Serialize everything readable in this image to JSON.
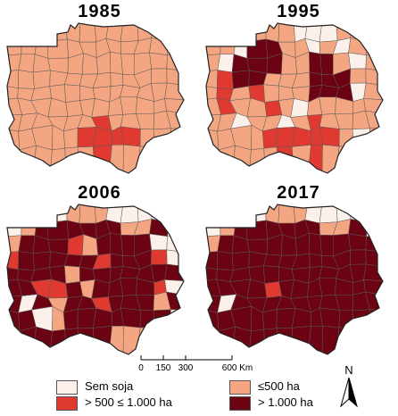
{
  "panels": [
    {
      "year": "1985"
    },
    {
      "year": "1995"
    },
    {
      "year": "2006"
    },
    {
      "year": "2017"
    }
  ],
  "scale": {
    "ticks": [
      "0",
      "150",
      "300",
      "600 Km"
    ]
  },
  "north_arrow": {
    "label": "N",
    "icon": "north-arrow-icon"
  },
  "legend": {
    "items": [
      {
        "label": "Sem soja",
        "color": "#fcf0ea"
      },
      {
        "label": "≤500 ha",
        "color": "#f4a582"
      },
      {
        "label": "> 500 ≤ 1.000 ha",
        "color": "#e03a30"
      },
      {
        "label": "> 1.000 ha",
        "color": "#6b0313"
      }
    ]
  },
  "colors": {
    "none": "#fcf0ea",
    "low": "#f4a582",
    "mid": "#e03a30",
    "high": "#6b0313",
    "border": "#222222",
    "muni_line": "#5a5a5a"
  }
}
